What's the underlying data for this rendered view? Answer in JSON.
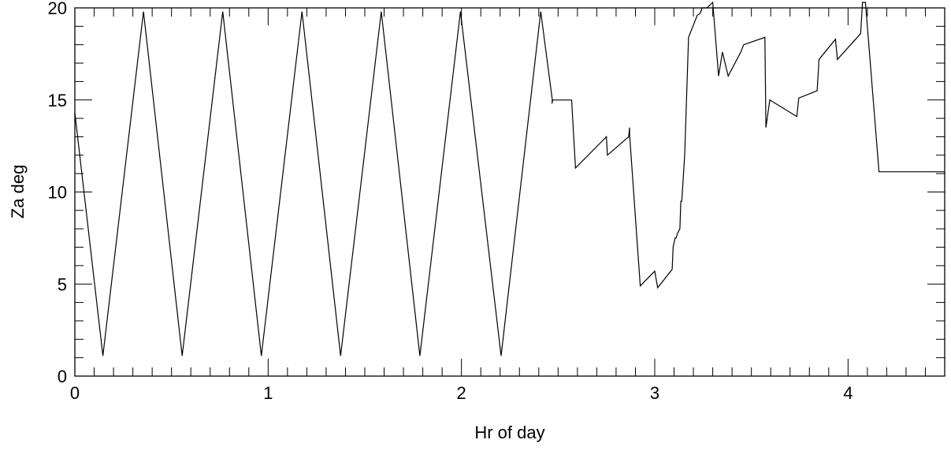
{
  "chart_data": {
    "type": "line",
    "title": "",
    "xlabel": "Hr of day",
    "ylabel": "Za deg",
    "xlim": [
      0,
      4.5
    ],
    "ylim": [
      0,
      20
    ],
    "xticks": [
      0,
      1,
      2,
      3,
      4
    ],
    "xtick_labels": [
      "0",
      "1",
      "2",
      "3",
      "4"
    ],
    "yticks": [
      0,
      5,
      10,
      15,
      20
    ],
    "ytick_labels": [
      "0",
      "5",
      "10",
      "15",
      "20"
    ],
    "x_minor_step": 0.1,
    "y_minor_step": 1,
    "grid": false,
    "line_color": "#000000",
    "series": [
      {
        "x": [
          0.0,
          0.145,
          0.355,
          0.555,
          0.765,
          0.965,
          1.175,
          1.375,
          1.585,
          1.785,
          1.995,
          2.205,
          2.41,
          2.47,
          2.468,
          2.472,
          2.535,
          2.555,
          2.57,
          2.59,
          2.75,
          2.755,
          2.865,
          2.87,
          2.87,
          2.925,
          3.0,
          3.015,
          3.09,
          3.095,
          3.105,
          3.11,
          3.12,
          3.13,
          3.135,
          3.14,
          3.155,
          3.175,
          3.22,
          3.235,
          3.245,
          3.26,
          3.27,
          3.3,
          3.33,
          3.35,
          3.38,
          3.445,
          3.46,
          3.57,
          3.575,
          3.595,
          3.735,
          3.745,
          3.84,
          3.85,
          3.935,
          3.945,
          4.065,
          4.075,
          4.09,
          4.16,
          4.5
        ],
        "y": [
          14.3,
          1.1,
          19.8,
          1.1,
          19.8,
          1.1,
          19.8,
          1.1,
          19.8,
          1.1,
          19.8,
          1.1,
          19.8,
          15.0,
          14.8,
          15.0,
          15.0,
          15.0,
          15.0,
          11.3,
          13.0,
          12.0,
          13.0,
          13.5,
          13.1,
          4.9,
          5.7,
          4.8,
          5.8,
          7.0,
          7.5,
          7.5,
          7.8,
          8.0,
          9.5,
          9.5,
          12.0,
          18.4,
          19.6,
          19.7,
          20.0,
          20.0,
          20.0,
          20.3,
          16.3,
          17.6,
          16.3,
          17.6,
          18.0,
          18.4,
          13.5,
          15.0,
          14.1,
          15.1,
          15.5,
          17.2,
          18.3,
          17.2,
          18.6,
          20.3,
          20.3,
          11.1,
          11.1
        ]
      }
    ]
  }
}
